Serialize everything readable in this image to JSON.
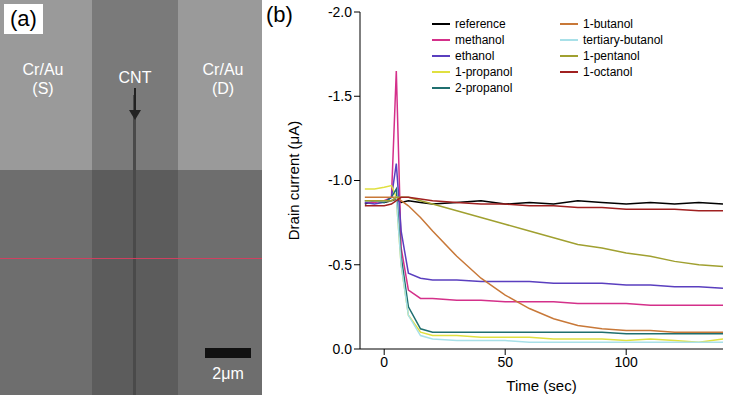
{
  "panel_a": {
    "label": "(a)",
    "electrode_left": [
      "Cr/Au",
      "(S)"
    ],
    "tube": "CNT",
    "electrode_right": [
      "Cr/Au",
      "(D)"
    ],
    "scale_bar": "2μm"
  },
  "chart_data": {
    "type": "line",
    "panel_label": "(b)",
    "x_label": "Time (sec)",
    "y_label": "Drain current (μA)",
    "legend": "upper right",
    "xlim": [
      -10,
      140
    ],
    "xticks": [
      0,
      50,
      100
    ],
    "ylim": [
      -2,
      0
    ],
    "yticks": [
      {
        "value": -2,
        "label": "-2.0"
      },
      {
        "value": -1.5,
        "label": "-1.5"
      },
      {
        "value": -1,
        "label": "-1.0"
      },
      {
        "value": -0.5,
        "label": "-0.5"
      },
      {
        "value": 0,
        "label": "0.0"
      }
    ],
    "x": [
      -8,
      -4,
      0,
      3,
      5,
      7,
      10,
      15,
      20,
      30,
      40,
      50,
      60,
      70,
      80,
      90,
      100,
      110,
      120,
      130,
      140
    ],
    "series": [
      {
        "name": "reference",
        "color": "#000000",
        "values": [
          -0.86,
          -0.88,
          -0.87,
          -0.88,
          -0.89,
          -0.87,
          -0.88,
          -0.87,
          -0.86,
          -0.87,
          -0.88,
          -0.86,
          -0.87,
          -0.86,
          -0.88,
          -0.87,
          -0.86,
          -0.87,
          -0.86,
          -0.87,
          -0.86
        ]
      },
      {
        "name": "methanol",
        "color": "#d4308a",
        "values": [
          -0.87,
          -0.87,
          -0.88,
          -0.9,
          -1.65,
          -0.6,
          -0.35,
          -0.3,
          -0.3,
          -0.29,
          -0.29,
          -0.28,
          -0.28,
          -0.28,
          -0.27,
          -0.27,
          -0.27,
          -0.26,
          -0.26,
          -0.26,
          -0.26
        ]
      },
      {
        "name": "ethanol",
        "color": "#5a3fbf",
        "values": [
          -0.87,
          -0.86,
          -0.87,
          -0.9,
          -1.1,
          -0.7,
          -0.45,
          -0.42,
          -0.41,
          -0.41,
          -0.4,
          -0.4,
          -0.4,
          -0.39,
          -0.39,
          -0.39,
          -0.38,
          -0.38,
          -0.37,
          -0.37,
          -0.36
        ]
      },
      {
        "name": "1-propanol",
        "color": "#e0e040",
        "values": [
          -0.95,
          -0.95,
          -0.96,
          -0.97,
          -0.9,
          -0.5,
          -0.2,
          -0.1,
          -0.08,
          -0.08,
          -0.07,
          -0.07,
          -0.07,
          -0.06,
          -0.06,
          -0.06,
          -0.05,
          -0.06,
          -0.05,
          -0.04,
          -0.06
        ]
      },
      {
        "name": "2-propanol",
        "color": "#1f6f6f",
        "values": [
          -0.88,
          -0.88,
          -0.87,
          -0.9,
          -0.95,
          -0.55,
          -0.25,
          -0.12,
          -0.1,
          -0.1,
          -0.1,
          -0.1,
          -0.1,
          -0.1,
          -0.1,
          -0.1,
          -0.09,
          -0.09,
          -0.09,
          -0.09,
          -0.09
        ]
      },
      {
        "name": "1-butanol",
        "color": "#c87838",
        "values": [
          -0.9,
          -0.9,
          -0.9,
          -0.9,
          -0.9,
          -0.88,
          -0.85,
          -0.78,
          -0.7,
          -0.55,
          -0.42,
          -0.32,
          -0.24,
          -0.18,
          -0.14,
          -0.12,
          -0.11,
          -0.11,
          -0.1,
          -0.1,
          -0.1
        ]
      },
      {
        "name": "tertiary-butanol",
        "color": "#a8e0e8",
        "values": [
          -0.88,
          -0.88,
          -0.88,
          -0.88,
          -0.9,
          -0.5,
          -0.2,
          -0.08,
          -0.06,
          -0.05,
          -0.05,
          -0.05,
          -0.04,
          -0.04,
          -0.04,
          -0.04,
          -0.04,
          -0.04,
          -0.04,
          -0.04,
          -0.04
        ]
      },
      {
        "name": "1-pentanol",
        "color": "#a0a030",
        "values": [
          -0.88,
          -0.88,
          -0.88,
          -0.88,
          -0.9,
          -0.9,
          -0.9,
          -0.88,
          -0.86,
          -0.82,
          -0.78,
          -0.74,
          -0.7,
          -0.66,
          -0.62,
          -0.6,
          -0.57,
          -0.55,
          -0.52,
          -0.5,
          -0.49
        ]
      },
      {
        "name": "1-octanol",
        "color": "#a02020",
        "values": [
          -0.85,
          -0.85,
          -0.85,
          -0.86,
          -0.88,
          -0.9,
          -0.9,
          -0.89,
          -0.88,
          -0.87,
          -0.86,
          -0.86,
          -0.85,
          -0.85,
          -0.84,
          -0.84,
          -0.83,
          -0.83,
          -0.83,
          -0.82,
          -0.82
        ]
      }
    ]
  }
}
